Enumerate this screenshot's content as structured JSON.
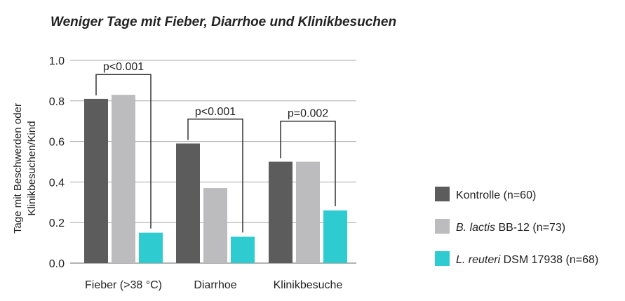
{
  "chart_data": {
    "type": "bar",
    "title": "Weniger Tage mit Fieber, Diarrhoe und Klinikbesuchen",
    "ylabel_lines": [
      "Tage mit Beschwerden oder",
      "Klinikbesuchen/Kind"
    ],
    "xlabel": "",
    "ylim": [
      0,
      1.0
    ],
    "yticks": [
      "0.0",
      "0.2",
      "0.4",
      "0.6",
      "0.8",
      "1.0"
    ],
    "grid": true,
    "legend_placement": "right",
    "categories": [
      "Fieber (>38 °C)",
      "Diarrhoe",
      "Klinikbesuche"
    ],
    "series": [
      {
        "name": "Kontrolle (n=60)",
        "name_italic": "",
        "name_rest": "Kontrolle (n=60)",
        "color": "#5c5c5c",
        "values": [
          0.81,
          0.59,
          0.5
        ]
      },
      {
        "name": "B. lactis BB-12 (n=73)",
        "name_italic": "B. lactis",
        "name_rest": " BB-12 (n=73)",
        "color": "#bcbcbe",
        "values": [
          0.83,
          0.37,
          0.5
        ]
      },
      {
        "name": "L. reuteri DSM 17938 (n=68)",
        "name_italic": "L. reuteri",
        "name_rest": " DSM 17938 (n=68)",
        "color": "#2ecbd0",
        "values": [
          0.15,
          0.13,
          0.26
        ]
      }
    ],
    "annotations": [
      {
        "category": "Fieber (>38 °C)",
        "text": "p<0.001",
        "between": [
          "Kontrolle (n=60)",
          "L. reuteri DSM 17938 (n=68)"
        ],
        "level": 0.93
      },
      {
        "category": "Diarrhoe",
        "text": "p<0.001",
        "between": [
          "Kontrolle (n=60)",
          "L. reuteri DSM 17938 (n=68)"
        ],
        "level": 0.71
      },
      {
        "category": "Klinikbesuche",
        "text": "p=0.002",
        "between": [
          "Kontrolle (n=60)",
          "L. reuteri DSM 17938 (n=68)"
        ],
        "level": 0.7
      }
    ]
  }
}
